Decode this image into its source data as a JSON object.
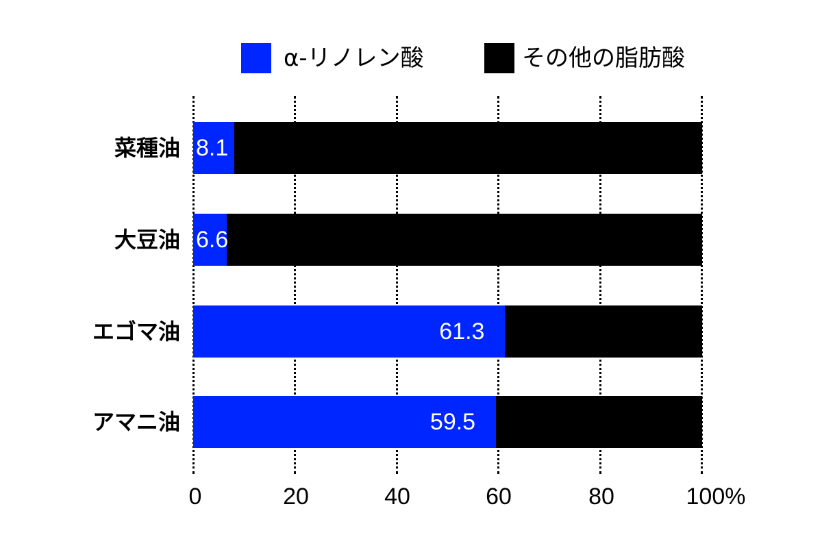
{
  "chart_data": {
    "type": "bar",
    "orientation": "horizontal",
    "stacked": true,
    "categories": [
      "菜種油",
      "大豆油",
      "エゴマ油",
      "アマニ油"
    ],
    "series": [
      {
        "name": "α-リノレン酸",
        "color": "#0026ff",
        "values": [
          8.1,
          6.6,
          61.3,
          59.5
        ]
      },
      {
        "name": "その他の脂肪酸",
        "color": "#000000",
        "values": [
          91.9,
          93.4,
          38.7,
          40.5
        ]
      }
    ],
    "data_labels": [
      "8.1",
      "6.6",
      "61.3",
      "59.5"
    ],
    "title": "",
    "xlabel": "",
    "ylabel": "",
    "xlim": [
      0,
      100
    ],
    "x_ticks": [
      "0",
      "20",
      "40",
      "60",
      "80",
      "100%"
    ],
    "grid": "vertical dotted",
    "legend_position": "top"
  },
  "legend": [
    {
      "label": "α-リノレン酸",
      "color": "#0026ff"
    },
    {
      "label": "その他の脂肪酸",
      "color": "#000000"
    }
  ]
}
